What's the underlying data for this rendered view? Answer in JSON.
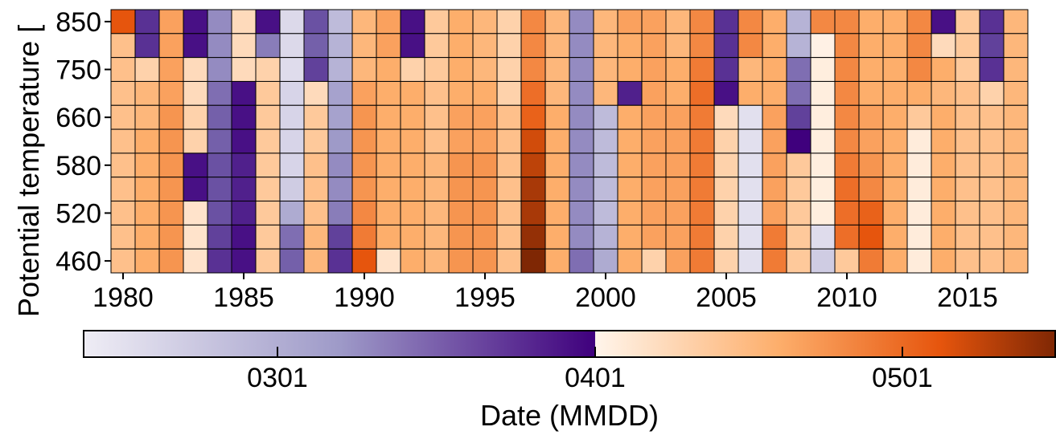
{
  "chart_data": {
    "type": "heatmap",
    "ylabel": "Potential temperature [",
    "x_years": [
      1980,
      1981,
      1982,
      1983,
      1984,
      1985,
      1986,
      1987,
      1988,
      1989,
      1990,
      1991,
      1992,
      1993,
      1994,
      1995,
      1996,
      1997,
      1998,
      1999,
      2000,
      2001,
      2002,
      2003,
      2004,
      2005,
      2006,
      2007,
      2008,
      2009,
      2010,
      2011,
      2012,
      2013,
      2014,
      2015,
      2016,
      2017
    ],
    "x_ticks": [
      1980,
      1985,
      1990,
      1995,
      2000,
      2005,
      2010,
      2015
    ],
    "y_ticks": [
      460,
      520,
      580,
      660,
      750,
      850
    ],
    "y_levels": [
      850,
      800,
      750,
      700,
      660,
      620,
      580,
      550,
      520,
      490,
      460
    ],
    "colorbar": {
      "label": "Date (MMDD)",
      "ticks": [
        "0301",
        "0401",
        "0501"
      ],
      "purple_range": [
        "#efedf5",
        "#3f007d"
      ],
      "orange_range": [
        "#fff5eb",
        "#7f2704"
      ],
      "split_at": "0401"
    },
    "rows_codes": [
      "OPoPpoPqPqoooooooooooooooooosoPoPooPooooPP",
      "OPoPpoPqPqoooooooooooooooooosoPoPooPooooPP"
    ],
    "values": [
      [
        0.75,
        -0.85,
        0.45,
        -0.95,
        -0.55,
        0.15,
        -0.95,
        -0.12,
        -0.75,
        -0.3,
        0.35,
        0.45,
        -0.95,
        0.25,
        0.4,
        0.35,
        0.2,
        0.55,
        0.35,
        -0.55,
        0.35,
        0.45,
        0.45,
        0.35,
        0.55,
        -0.85,
        0.55,
        0.4,
        -0.35,
        0.55,
        0.55,
        0.4,
        0.4,
        0.55,
        -0.95,
        0.25,
        -0.85,
        0.35
      ],
      [
        0.3,
        -0.85,
        0.45,
        -0.95,
        -0.55,
        0.15,
        -0.6,
        -0.12,
        -0.7,
        -0.35,
        0.35,
        0.45,
        -0.95,
        0.25,
        0.4,
        0.35,
        0.2,
        0.55,
        0.35,
        -0.55,
        0.35,
        0.4,
        0.45,
        0.35,
        0.55,
        -0.85,
        0.55,
        0.4,
        -0.35,
        0.02,
        0.55,
        0.4,
        0.4,
        0.55,
        0.15,
        0.25,
        -0.8,
        0.35
      ],
      [
        0.3,
        0.2,
        0.45,
        0.15,
        -0.55,
        0.15,
        0.2,
        -0.1,
        -0.8,
        -0.35,
        0.35,
        0.4,
        0.2,
        0.25,
        0.4,
        0.35,
        0.2,
        0.55,
        0.35,
        -0.55,
        0.35,
        0.4,
        0.45,
        0.4,
        0.6,
        -0.85,
        0.35,
        0.4,
        -0.65,
        0.04,
        0.55,
        0.4,
        0.4,
        0.55,
        0.4,
        0.25,
        -0.85,
        0.35
      ],
      [
        0.3,
        0.35,
        0.45,
        0.15,
        -0.65,
        -0.95,
        0.25,
        -0.15,
        0.15,
        -0.45,
        0.45,
        0.4,
        0.4,
        0.3,
        0.4,
        0.4,
        0.2,
        0.65,
        0.35,
        -0.55,
        0.35,
        -0.9,
        0.45,
        0.4,
        0.65,
        -0.95,
        0.4,
        0.4,
        -0.65,
        0.04,
        0.55,
        0.4,
        0.4,
        0.4,
        0.35,
        0.3,
        0.2,
        0.35
      ],
      [
        0.3,
        0.35,
        0.5,
        0.2,
        -0.7,
        -0.95,
        0.25,
        -0.15,
        0.25,
        -0.45,
        0.5,
        0.4,
        0.4,
        0.3,
        0.45,
        0.45,
        0.3,
        0.7,
        0.4,
        -0.55,
        -0.3,
        0.4,
        0.45,
        0.45,
        0.6,
        0.15,
        -0.08,
        0.45,
        -0.8,
        0.04,
        0.55,
        0.45,
        0.4,
        0.25,
        0.4,
        0.3,
        0.3,
        0.35
      ],
      [
        0.3,
        0.4,
        0.5,
        0.2,
        -0.7,
        -0.95,
        0.25,
        -0.15,
        0.25,
        -0.5,
        0.5,
        0.4,
        0.4,
        0.3,
        0.45,
        0.45,
        0.3,
        0.8,
        0.4,
        -0.55,
        -0.3,
        0.4,
        0.45,
        0.45,
        0.6,
        0.2,
        -0.08,
        0.45,
        -1.0,
        0.04,
        0.55,
        0.45,
        0.4,
        0.05,
        0.4,
        0.3,
        0.3,
        0.35
      ],
      [
        0.3,
        0.4,
        0.5,
        -0.95,
        -0.75,
        -0.9,
        0.25,
        -0.15,
        0.3,
        -0.55,
        0.5,
        0.4,
        0.4,
        0.35,
        0.5,
        0.5,
        0.3,
        0.85,
        0.4,
        -0.55,
        -0.3,
        0.4,
        0.45,
        0.45,
        0.6,
        0.2,
        -0.08,
        0.45,
        0.25,
        0.04,
        0.6,
        0.5,
        0.4,
        0.05,
        0.4,
        0.3,
        0.3,
        0.35
      ],
      [
        0.3,
        0.4,
        0.5,
        -0.95,
        -0.75,
        -0.9,
        0.25,
        -0.2,
        0.3,
        -0.55,
        0.5,
        0.4,
        0.4,
        0.35,
        0.5,
        0.5,
        0.3,
        0.9,
        0.4,
        -0.55,
        -0.3,
        0.4,
        0.45,
        0.45,
        0.6,
        0.2,
        -0.08,
        0.45,
        0.25,
        0.04,
        0.65,
        0.55,
        0.4,
        0.05,
        0.4,
        0.3,
        0.3,
        0.35
      ],
      [
        0.3,
        0.4,
        0.5,
        0.1,
        -0.75,
        -0.9,
        0.25,
        -0.4,
        0.3,
        -0.6,
        0.55,
        0.4,
        0.4,
        0.35,
        0.5,
        0.5,
        0.3,
        0.9,
        0.4,
        -0.55,
        -0.3,
        0.4,
        0.45,
        0.45,
        0.6,
        0.2,
        -0.08,
        0.45,
        0.25,
        0.04,
        0.65,
        0.7,
        0.4,
        0.05,
        0.4,
        0.3,
        0.3,
        0.35
      ],
      [
        0.3,
        0.4,
        0.5,
        0.1,
        -0.8,
        -0.95,
        0.25,
        -0.65,
        0.35,
        -0.8,
        0.6,
        0.4,
        0.4,
        0.35,
        0.5,
        0.5,
        0.3,
        0.95,
        0.4,
        -0.55,
        -0.35,
        0.4,
        0.45,
        0.45,
        0.6,
        0.2,
        -0.08,
        0.6,
        0.25,
        -0.1,
        0.65,
        0.75,
        0.4,
        0.05,
        0.4,
        0.3,
        0.3,
        0.35
      ],
      [
        0.3,
        0.4,
        0.5,
        0.1,
        -0.85,
        -0.95,
        0.25,
        -0.7,
        0.35,
        -0.85,
        0.75,
        0.1,
        0.4,
        0.35,
        0.5,
        0.5,
        0.3,
        1.0,
        0.4,
        -0.65,
        -0.4,
        0.4,
        0.2,
        0.45,
        0.6,
        0.2,
        -0.08,
        0.6,
        0.25,
        -0.2,
        0.25,
        0.6,
        0.4,
        0.05,
        0.4,
        0.3,
        0.3,
        0.35
      ]
    ]
  }
}
